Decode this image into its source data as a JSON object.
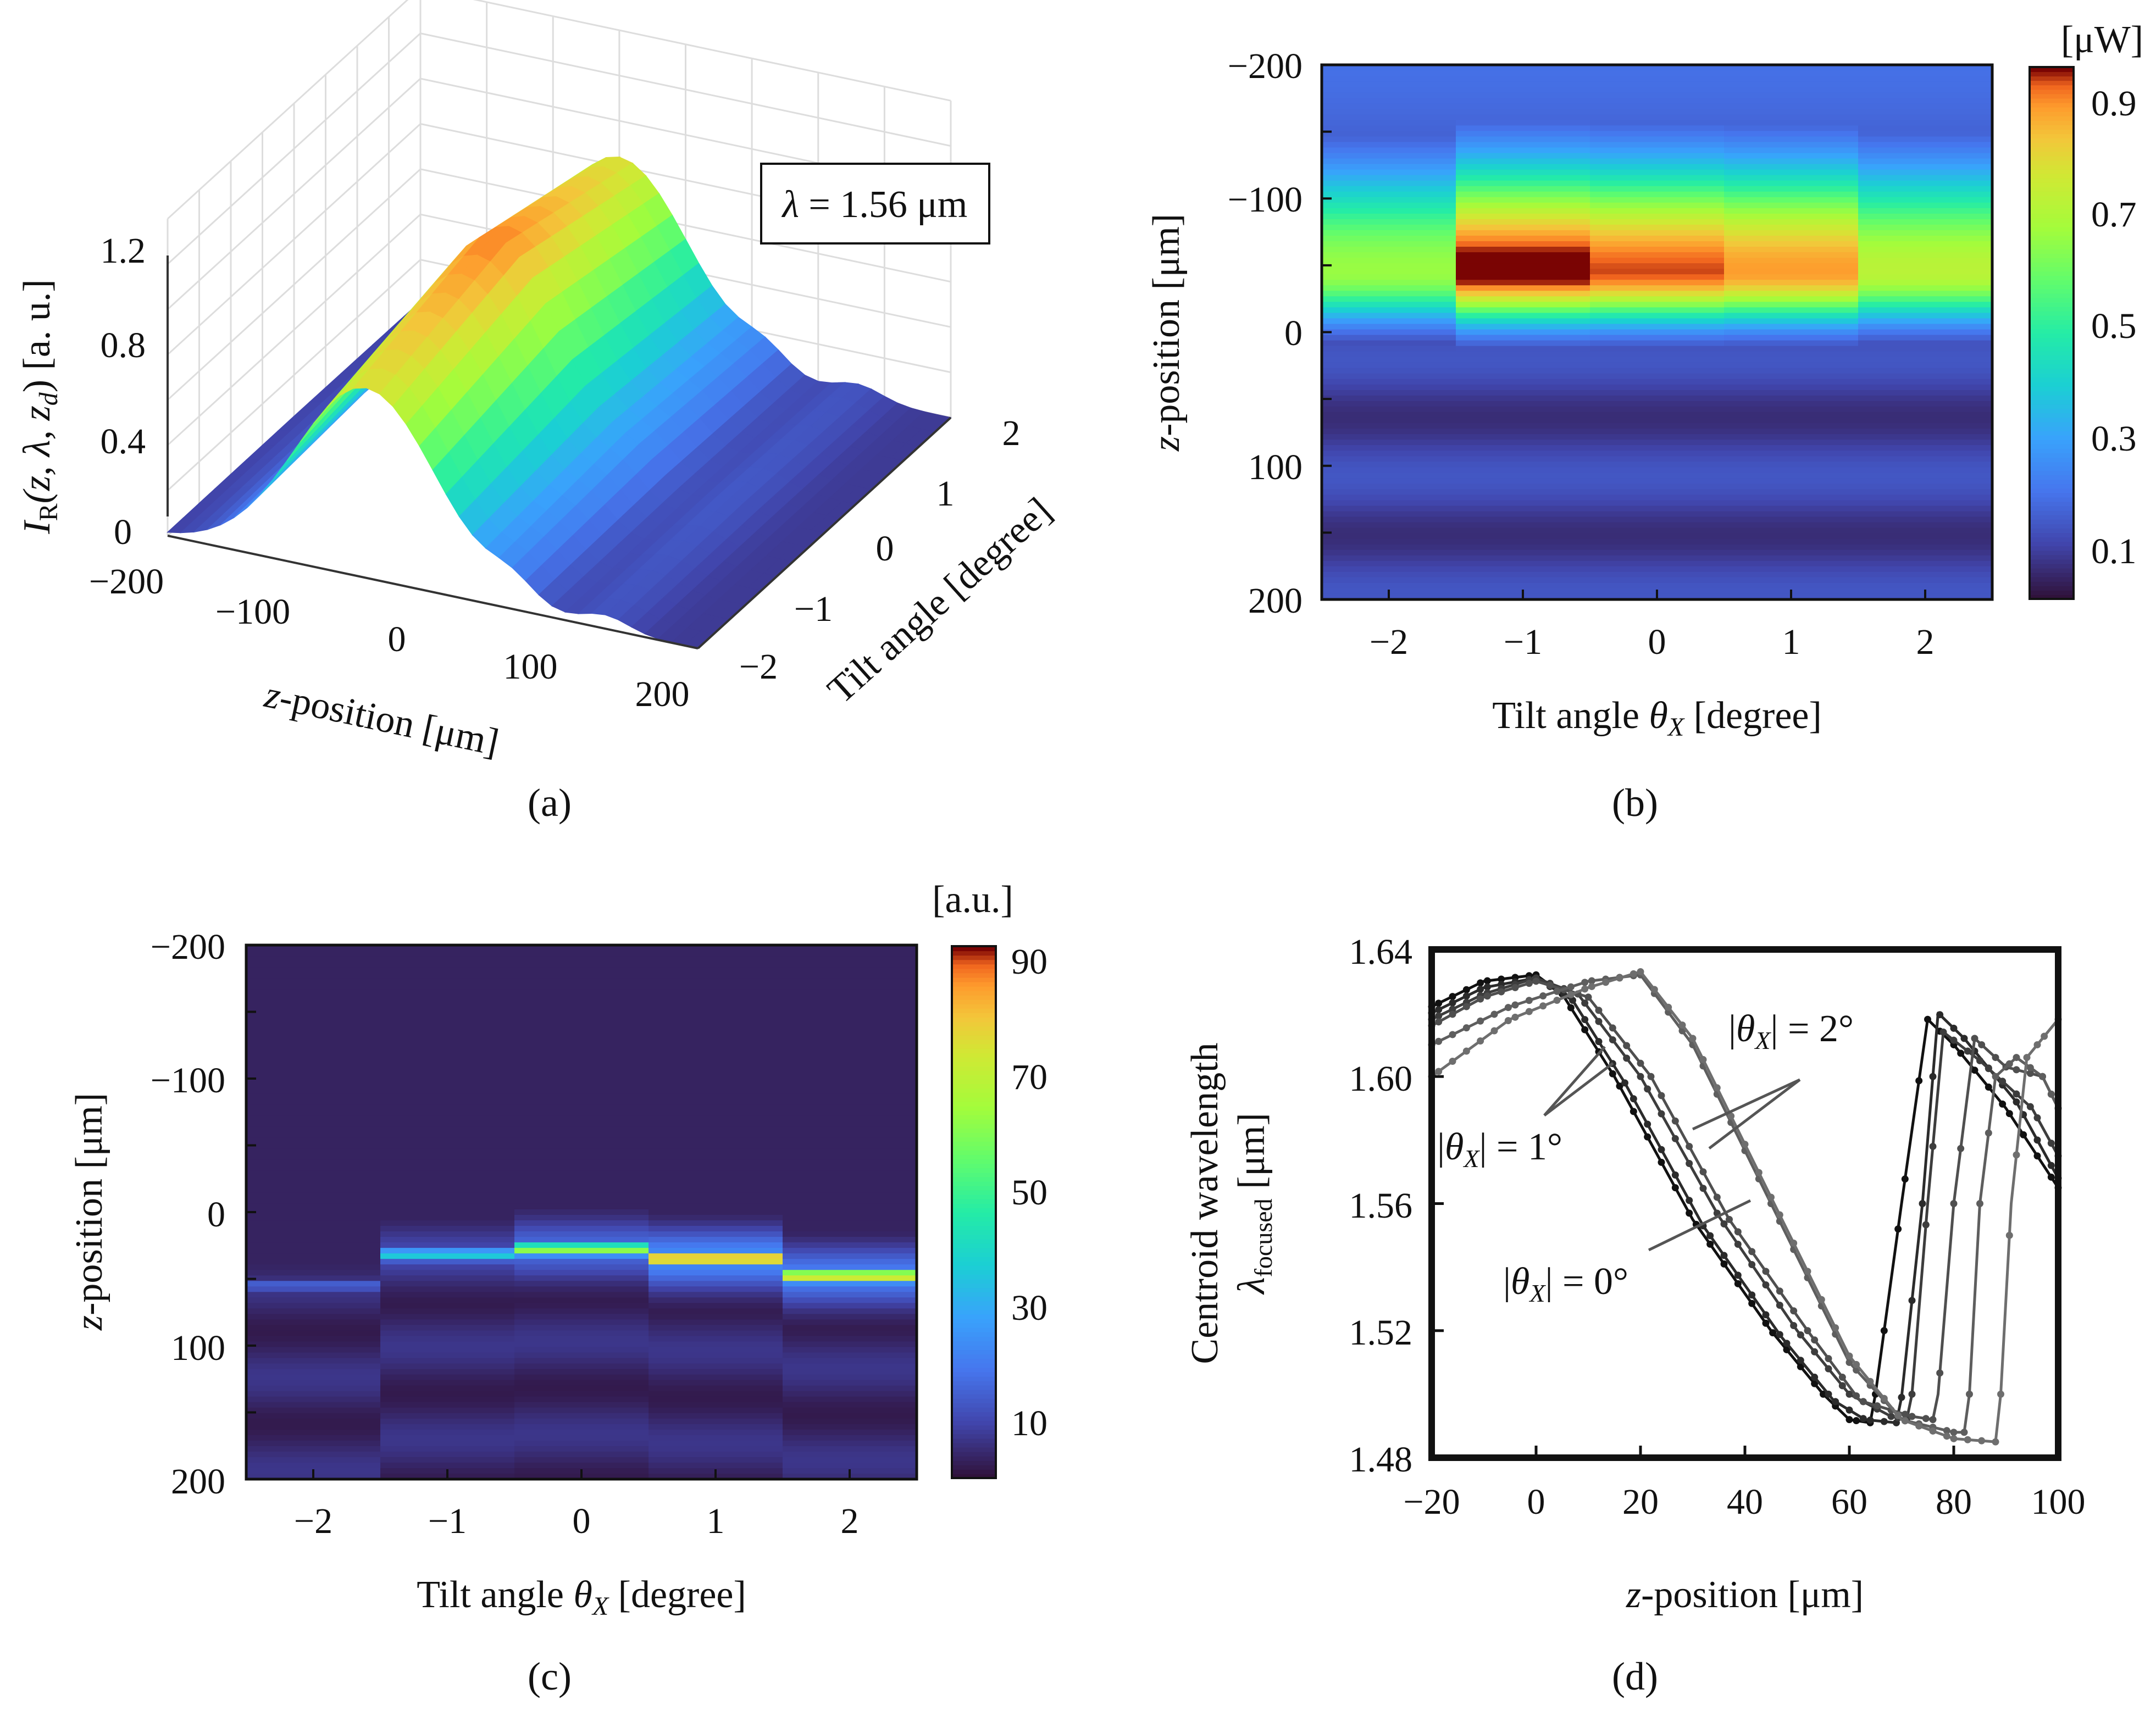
{
  "chart_data": [
    {
      "panel": "a",
      "type": "surface3d",
      "caption": "(a)",
      "annotation_parts": [
        "λ",
        " = 1.56 μm"
      ],
      "zlabel_parts": [
        "I",
        "R",
        "(z, λ, z",
        "d",
        ")  [a. u.]"
      ],
      "xlabel_parts": [
        "z",
        "-position  [μm]"
      ],
      "ylabel": "Tilt angle  [degree]",
      "xticks": [
        "−200",
        "−100",
        "0",
        "100",
        "200"
      ],
      "yticks": [
        "−2",
        "−1",
        "0",
        "1",
        "2"
      ],
      "zticks": [
        "0",
        "0.4",
        "0.8",
        "1.2"
      ],
      "xlim": [
        -200,
        200
      ],
      "ylim": [
        -2,
        2
      ],
      "zlim": [
        0,
        1.2
      ],
      "peak_value": 1.0,
      "peak_z": -50
    },
    {
      "panel": "b",
      "type": "heatmap",
      "caption": "(b)",
      "xlabel_parts": [
        "Tilt angle ",
        "θ",
        "X",
        "  [degree]"
      ],
      "ylabel_parts": [
        "z",
        "-position  [μm]"
      ],
      "xticks": [
        "−2",
        "−1",
        "0",
        "1",
        "2"
      ],
      "yticks": [
        "−200",
        "−100",
        "0",
        "100",
        "200"
      ],
      "colorbar_unit": "[μW]",
      "colorbar_ticks": [
        "0.1",
        "0.3",
        "0.5",
        "0.7",
        "0.9"
      ],
      "colorbar_range": [
        0,
        0.95
      ],
      "tilt_angles": [
        -2,
        -1,
        0,
        1,
        2
      ],
      "peak_power": [
        0.62,
        0.95,
        0.9,
        0.85,
        0.68
      ],
      "peak_z": -45
    },
    {
      "panel": "c",
      "type": "heatmap",
      "caption": "(c)",
      "xlabel_parts": [
        "Tilt angle ",
        "θ",
        "X",
        "  [degree]"
      ],
      "ylabel_parts": [
        "z",
        "-position  [μm]"
      ],
      "xticks": [
        "−2",
        "−1",
        "0",
        "1",
        "2"
      ],
      "yticks": [
        "−200",
        "−100",
        "0",
        "100",
        "200"
      ],
      "colorbar_unit": "[a.u.]",
      "colorbar_ticks": [
        "10",
        "30",
        "50",
        "70",
        "90"
      ],
      "colorbar_range": [
        0,
        92
      ],
      "tilt_angles": [
        -2,
        -1,
        0,
        1,
        2
      ],
      "peak_value": [
        14,
        36,
        62,
        90,
        78
      ],
      "peak_z": [
        55,
        32,
        28,
        35,
        48
      ]
    },
    {
      "panel": "d",
      "type": "line",
      "caption": "(d)",
      "xlabel_parts": [
        "z",
        "-position  [μm]"
      ],
      "ylabel_line1": "Centroid wavelength",
      "ylabel_line2_parts": [
        "λ",
        "focused",
        "  [μm]"
      ],
      "xticks": [
        "−20",
        "0",
        "20",
        "40",
        "60",
        "80",
        "100"
      ],
      "yticks": [
        "1.48",
        "1.52",
        "1.56",
        "1.60",
        "1.64"
      ],
      "xlim": [
        -20,
        100
      ],
      "ylim": [
        1.48,
        1.64
      ],
      "annotations": [
        {
          "parts": [
            "|",
            "θ",
            "X",
            "| = 2°"
          ]
        },
        {
          "parts": [
            "|",
            "θ",
            "X",
            "| = 1°"
          ]
        },
        {
          "parts": [
            "|",
            "θ",
            "X",
            "| = 0°"
          ]
        }
      ],
      "series": [
        {
          "name": "0° a",
          "color": "#111111",
          "x": [
            -20,
            -10,
            0,
            5,
            15,
            30,
            45,
            55,
            60,
            64,
            65,
            70,
            75,
            80,
            90,
            100
          ],
          "y": [
            1.622,
            1.63,
            1.632,
            1.626,
            1.6,
            1.555,
            1.52,
            1.5,
            1.492,
            1.491,
            1.5,
            1.56,
            1.618,
            1.61,
            1.59,
            1.565
          ]
        },
        {
          "name": "0° b",
          "color": "#2b2b2b",
          "x": [
            -20,
            -10,
            0,
            7,
            17,
            32,
            47,
            57,
            63,
            69,
            70,
            74,
            77,
            82,
            92,
            100
          ],
          "y": [
            1.62,
            1.628,
            1.631,
            1.624,
            1.598,
            1.553,
            1.518,
            1.498,
            1.492,
            1.491,
            1.499,
            1.56,
            1.62,
            1.612,
            1.592,
            1.568
          ]
        },
        {
          "name": "1° a",
          "color": "#3d3d3d",
          "x": [
            -20,
            -10,
            0,
            8,
            20,
            35,
            50,
            60,
            68,
            71,
            72,
            75,
            78,
            85,
            95,
            100
          ],
          "y": [
            1.618,
            1.626,
            1.631,
            1.626,
            1.6,
            1.556,
            1.52,
            1.5,
            1.493,
            1.492,
            1.5,
            1.56,
            1.614,
            1.605,
            1.59,
            1.575
          ]
        },
        {
          "name": "1° b",
          "color": "#4f4f4f",
          "x": [
            -20,
            -10,
            0,
            10,
            22,
            37,
            52,
            62,
            72,
            76,
            77,
            80,
            84,
            90,
            97,
            100
          ],
          "y": [
            1.616,
            1.625,
            1.63,
            1.625,
            1.6,
            1.555,
            1.52,
            1.498,
            1.493,
            1.492,
            1.5,
            1.56,
            1.612,
            1.603,
            1.6,
            1.59
          ]
        },
        {
          "name": "2° a",
          "color": "#5e5e5e",
          "x": [
            -20,
            -5,
            10,
            20,
            30,
            45,
            60,
            70,
            80,
            82,
            83,
            85,
            88,
            92,
            97,
            100
          ],
          "y": [
            1.61,
            1.622,
            1.63,
            1.632,
            1.61,
            1.56,
            1.51,
            1.492,
            1.488,
            1.488,
            1.5,
            1.56,
            1.6,
            1.606,
            1.6,
            1.59
          ]
        },
        {
          "name": "2° b",
          "color": "#6e6e6e",
          "x": [
            -20,
            -5,
            10,
            20,
            30,
            45,
            60,
            70,
            80,
            88,
            89,
            91,
            94,
            97,
            100
          ],
          "y": [
            1.6,
            1.618,
            1.628,
            1.633,
            1.612,
            1.562,
            1.512,
            1.492,
            1.486,
            1.485,
            1.5,
            1.56,
            1.606,
            1.612,
            1.618
          ]
        }
      ]
    }
  ]
}
